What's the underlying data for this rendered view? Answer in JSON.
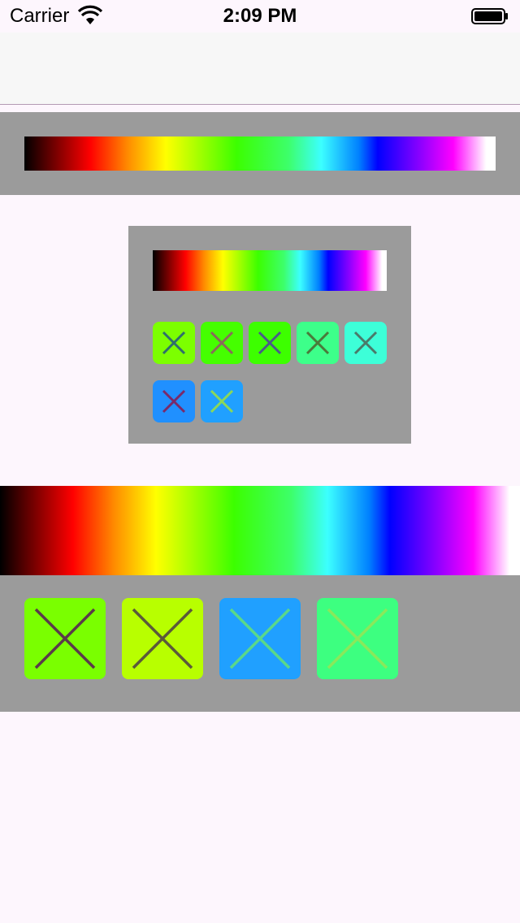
{
  "status_bar": {
    "carrier": "Carrier",
    "time": "2:09 PM"
  },
  "icons": {
    "signal": "wifi-icon",
    "battery": "battery-icon",
    "swatch": "close-icon"
  },
  "colors": {
    "panel": "#9b9b9b",
    "background": "#fdf6fd"
  },
  "middle_panel": {
    "swatches": [
      {
        "fill": "#7cff00",
        "cross": "#2e6e6e"
      },
      {
        "fill": "#45ff00",
        "cross": "#8a6a5a"
      },
      {
        "fill": "#3dff00",
        "cross": "#4a5a8a"
      },
      {
        "fill": "#3dff8a",
        "cross": "#4a7a3a"
      },
      {
        "fill": "#3dffd8",
        "cross": "#4a7a6a"
      },
      {
        "fill": "#2090ff",
        "cross": "#7a2a6a"
      },
      {
        "fill": "#20a0ff",
        "cross": "#8ad85a"
      }
    ]
  },
  "bottom_panel": {
    "swatches": [
      {
        "fill": "#7aff00",
        "cross": "#5a3a4a"
      },
      {
        "fill": "#b8ff00",
        "cross": "#5a5a3a"
      },
      {
        "fill": "#20a0ff",
        "cross": "#5ad88a"
      },
      {
        "fill": "#3dff80",
        "cross": "#8ae85a"
      }
    ]
  }
}
